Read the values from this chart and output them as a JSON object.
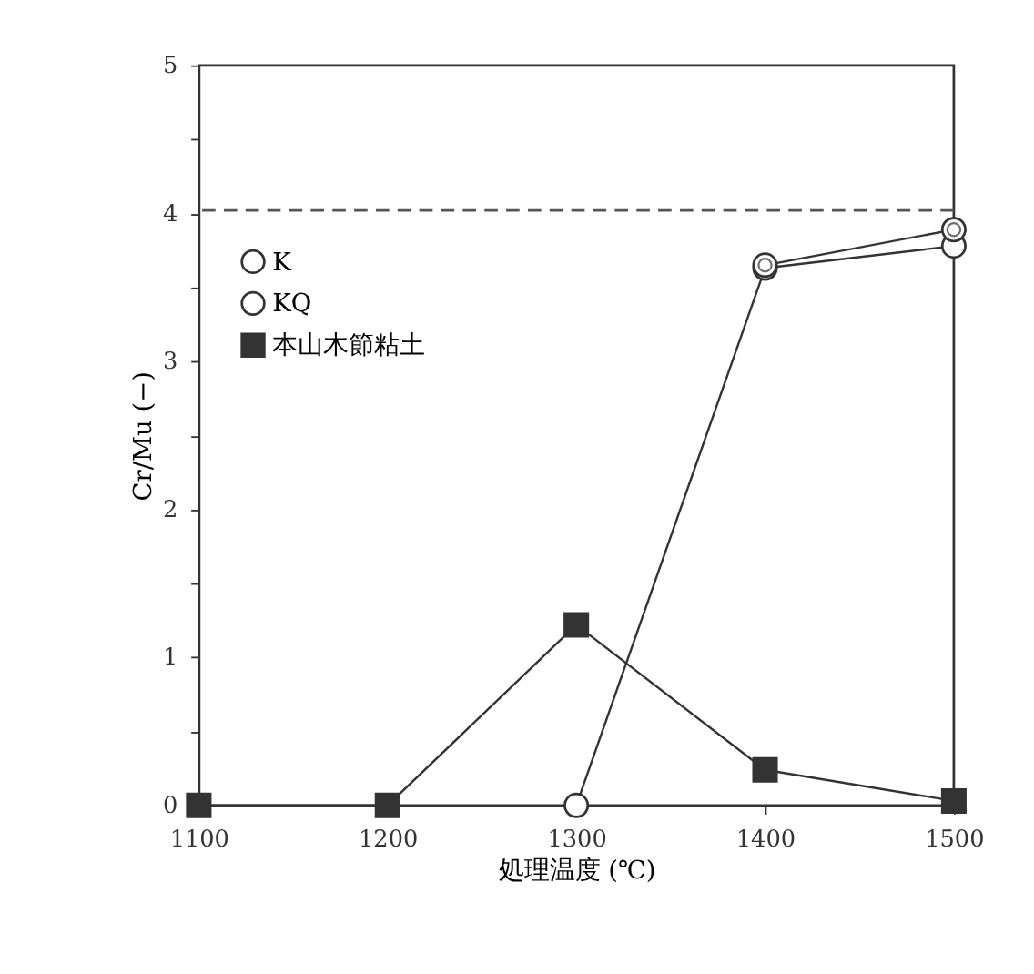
{
  "chart_data": {
    "type": "line",
    "xlabel": "処理温度 (℃)",
    "ylabel": "Cr/Mu (−)",
    "xlim": [
      1100,
      1500
    ],
    "xticks": [
      1100,
      1200,
      1300,
      1400,
      1500
    ],
    "ylim": [
      0,
      5
    ],
    "yticks": [
      0,
      {
        "value": 0.5,
        "label": null
      },
      1,
      {
        "value": 1.5,
        "label": null
      },
      2,
      {
        "value": 2.5,
        "label": null
      },
      3,
      {
        "value": 3.5,
        "label": null
      },
      4,
      {
        "value": 4.5,
        "label": null
      },
      5
    ],
    "grid": false,
    "legend": "top left",
    "line_style": "solid",
    "series": [
      {
        "name": "K",
        "color": "#333333",
        "marker": "circle",
        "x": [
          1300,
          1400,
          1500
        ],
        "values": [
          0,
          3.63,
          3.78
        ]
      },
      {
        "name": "KQ",
        "color": "#333333",
        "marker": "double_circle",
        "x": [
          1400,
          1500
        ],
        "values": [
          3.65,
          3.89
        ]
      },
      {
        "name": "本山木節粘土",
        "color": "#333333",
        "marker": "square",
        "x": [
          1100,
          1200,
          1300,
          1400,
          1500
        ],
        "values": [
          0,
          0,
          1.22,
          0.24,
          0.03
        ]
      }
    ],
    "ref_lines": [
      {
        "axis": "y",
        "value": 4.02,
        "color": "#555555",
        "line_style": "dashed"
      }
    ]
  }
}
